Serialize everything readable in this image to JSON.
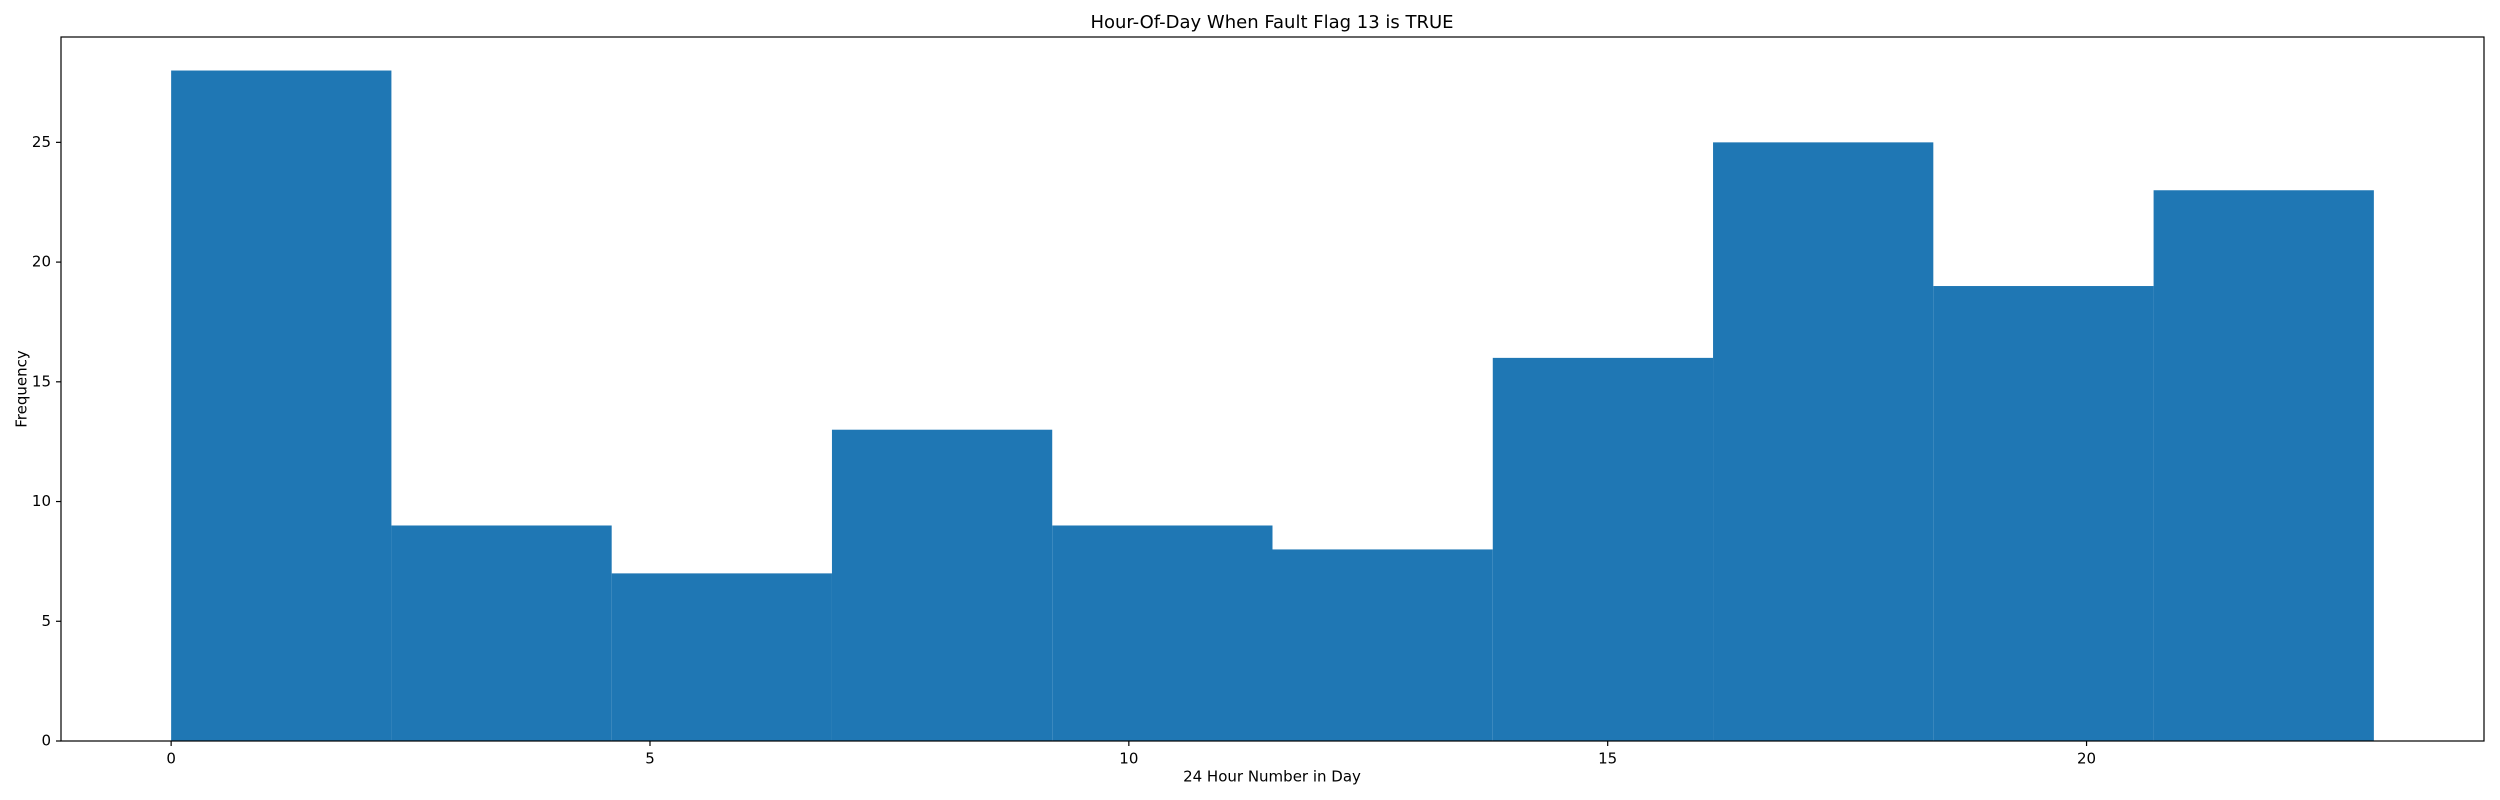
{
  "chart_data": {
    "type": "histogram",
    "title": "Hour-Of-Day When Fault Flag 13 is TRUE",
    "xlabel": "24 Hour Number in Day",
    "ylabel": "Frequency",
    "bins": [
      0,
      2.3,
      4.6,
      6.9,
      9.2,
      11.5,
      13.8,
      16.1,
      18.4,
      20.7,
      23
    ],
    "values": [
      28,
      9,
      7,
      13,
      9,
      8,
      16,
      25,
      19,
      23
    ],
    "color": "#1f77b4",
    "xlim": [
      -1.15,
      24.15
    ],
    "ylim": [
      0,
      29.4
    ],
    "xticks": [
      0,
      5,
      10,
      15,
      20
    ],
    "yticks": [
      0,
      5,
      10,
      15,
      20,
      25
    ],
    "grid": false
  }
}
